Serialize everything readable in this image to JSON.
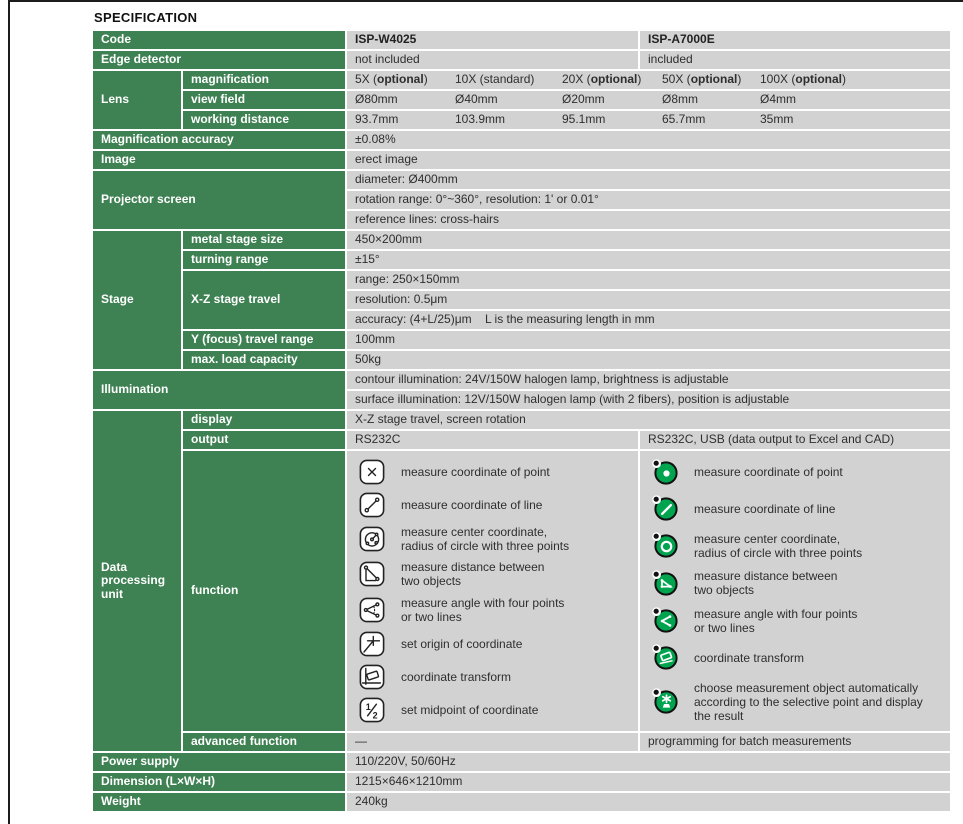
{
  "page": {
    "title": "SPECIFICATION"
  },
  "colors": {
    "header_green": "#3E8153",
    "cell_gray": "#D2D2D2",
    "icon_green": "#00A44F"
  },
  "rows": {
    "code": {
      "label": "Code",
      "w": "ISP-W4025",
      "a": "ISP-A7000E"
    },
    "edge": {
      "label": "Edge detector",
      "w": "not included",
      "a": "included"
    },
    "lens": {
      "label": "Lens",
      "magnification": {
        "label": "magnification",
        "cells": [
          {
            "pre": "5X (",
            "bold": "optional",
            "post": ")"
          },
          {
            "pre": "10X (standard)",
            "bold": "",
            "post": ""
          },
          {
            "pre": "20X (",
            "bold": "optional",
            "post": ")"
          },
          {
            "pre": "50X (",
            "bold": "optional",
            "post": ")"
          },
          {
            "pre": "100X (",
            "bold": "optional",
            "post": ")"
          }
        ]
      },
      "view_field": {
        "label": "view field",
        "cells": [
          "Ø80mm",
          "Ø40mm",
          "Ø20mm",
          "Ø8mm",
          "Ø4mm"
        ]
      },
      "working_distance": {
        "label": "working distance",
        "cells": [
          "93.7mm",
          "103.9mm",
          "95.1mm",
          "65.7mm",
          "35mm"
        ]
      }
    },
    "magnification_accuracy": {
      "label": "Magnification accuracy",
      "value": "±0.08%"
    },
    "image": {
      "label": "Image",
      "value": "erect image"
    },
    "projector_screen": {
      "label": "Projector screen",
      "values": [
        "diameter: Ø400mm",
        "rotation range: 0°~360°, resolution: 1' or 0.01°",
        "reference lines: cross-hairs"
      ]
    },
    "stage": {
      "label": "Stage",
      "metal_stage_size": {
        "label": "metal stage size",
        "value": "450×200mm"
      },
      "turning_range": {
        "label": "turning range",
        "value": "±15°"
      },
      "xz_travel": {
        "label": "X-Z stage travel",
        "values": [
          "range: 250×150mm",
          "resolution: 0.5μm",
          "accuracy: (4+L/25)μm    L is the measuring length in mm"
        ]
      },
      "y_travel": {
        "label": "Y (focus) travel range",
        "value": "100mm"
      },
      "max_load": {
        "label": "max. load capacity",
        "value": "50kg"
      }
    },
    "illumination": {
      "label": "Illumination",
      "values": [
        "contour illumination: 24V/150W halogen lamp, brightness is adjustable",
        "surface illumination: 12V/150W halogen lamp (with 2 fibers), position is adjustable"
      ]
    },
    "dpu": {
      "label": "Data processing unit",
      "display": {
        "label": "display",
        "value": "X-Z stage travel, screen rotation"
      },
      "output": {
        "label": "output",
        "w": "RS232C",
        "a": "RS232C, USB (data output to Excel and CAD)"
      },
      "function": {
        "label": "function",
        "w": [
          {
            "icon": "point-box-icon",
            "label": "measure coordinate of point"
          },
          {
            "icon": "line-box-icon",
            "label": "measure coordinate of line"
          },
          {
            "icon": "circle-box-icon",
            "label": "measure center coordinate,\nradius of circle with three points"
          },
          {
            "icon": "distance-box-icon",
            "label": "measure distance between\ntwo objects"
          },
          {
            "icon": "angle-box-icon",
            "label": "measure angle with four points\nor two lines"
          },
          {
            "icon": "origin-box-icon",
            "label": "set origin of coordinate"
          },
          {
            "icon": "transform-box-icon",
            "label": "coordinate transform"
          },
          {
            "icon": "midpoint-box-icon",
            "label": "set midpoint of coordinate"
          }
        ],
        "a": [
          {
            "icon": "point-ball-icon",
            "label": "measure coordinate of point"
          },
          {
            "icon": "line-ball-icon",
            "label": "measure coordinate of line"
          },
          {
            "icon": "circle-ball-icon",
            "label": "measure center coordinate,\nradius of circle with three points"
          },
          {
            "icon": "distance-ball-icon",
            "label": "measure distance between\ntwo objects"
          },
          {
            "icon": "angle-ball-icon",
            "label": "measure angle with four points\nor two lines"
          },
          {
            "icon": "transform-ball-icon",
            "label": "coordinate transform"
          },
          {
            "icon": "auto-measure-ball-icon",
            "label": "choose measurement object\nautomatically according to the\nselective point and display the result"
          }
        ]
      },
      "advanced": {
        "label": "advanced function",
        "w": "—",
        "a": "programming for batch measurements"
      }
    },
    "power": {
      "label": "Power supply",
      "value": "110/220V, 50/60Hz"
    },
    "dimension": {
      "label": "Dimension (L×W×H)",
      "value": "1215×646×1210mm"
    },
    "weight": {
      "label": "Weight",
      "value": "240kg"
    }
  }
}
